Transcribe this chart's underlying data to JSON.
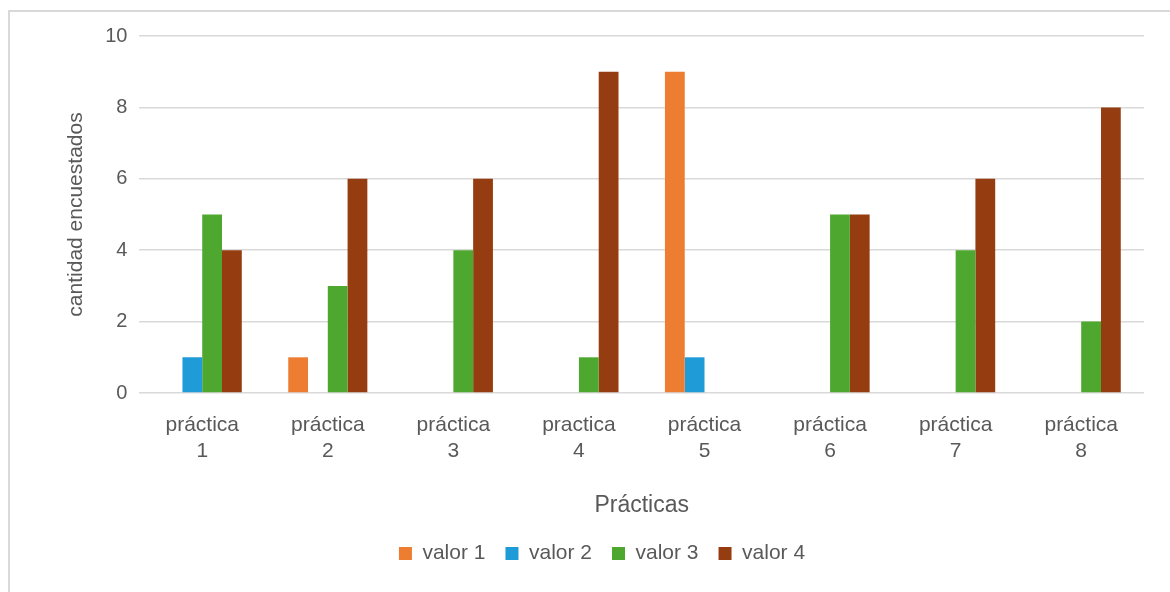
{
  "chart_data": {
    "type": "bar",
    "xlabel": "Prácticas",
    "ylabel": "cantidad encuestados",
    "categories": [
      "práctica 1",
      "práctica 2",
      "práctica 3",
      "practica 4",
      "práctica 5",
      "práctica 6",
      "práctica 7",
      "práctica 8"
    ],
    "series": [
      {
        "name": "valor 1",
        "color": "#ed7d31",
        "values": [
          null,
          1,
          null,
          null,
          9,
          null,
          null,
          null
        ]
      },
      {
        "name": "valor 2",
        "color": "#1f9bd7",
        "values": [
          1,
          null,
          null,
          null,
          1,
          null,
          null,
          null
        ]
      },
      {
        "name": "valor 3",
        "color": "#4ea72e",
        "values": [
          5,
          3,
          4,
          1,
          null,
          5,
          4,
          2
        ]
      },
      {
        "name": "valor 4",
        "color": "#963c11",
        "values": [
          4,
          6,
          6,
          9,
          null,
          5,
          6,
          8
        ]
      }
    ],
    "ylim": [
      0,
      10
    ],
    "yticks": [
      0,
      2,
      4,
      6,
      8,
      10
    ],
    "grid": "y",
    "legend": "bottom"
  }
}
